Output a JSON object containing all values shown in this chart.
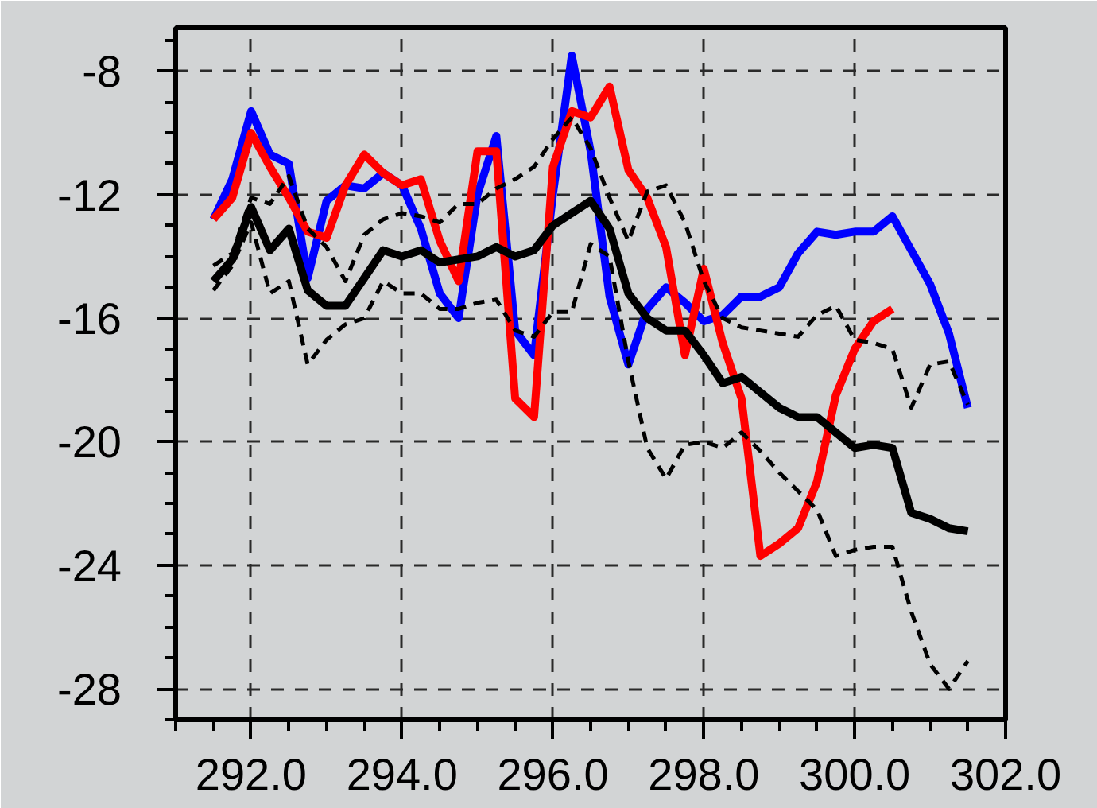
{
  "chart_data": {
    "type": "line",
    "x": [
      291.5,
      291.75,
      292,
      292.25,
      292.5,
      292.75,
      293,
      293.25,
      293.5,
      293.75,
      294,
      294.25,
      294.5,
      294.75,
      295,
      295.25,
      295.5,
      295.75,
      296,
      296.25,
      296.5,
      296.75,
      297,
      297.25,
      297.5,
      297.75,
      298,
      298.25,
      298.5,
      298.75,
      299,
      299.25,
      299.5,
      299.75,
      300,
      300.25,
      300.5,
      300.75,
      301,
      301.25,
      301.5
    ],
    "series": [
      {
        "color": "#0000ff",
        "line_style": "solid",
        "values": [
          -12.8,
          -11.5,
          -9.3,
          -10.7,
          -11.0,
          -14.7,
          -12.2,
          -11.7,
          -11.8,
          -11.3,
          -11.7,
          -13.1,
          -15.2,
          -16.0,
          -12.0,
          -10.1,
          -16.4,
          -17.2,
          -12.0,
          -7.5,
          -10.6,
          -15.3,
          -17.5,
          -15.7,
          -15.0,
          -15.5,
          -16.1,
          -15.9,
          -15.3,
          -15.3,
          -15.0,
          -13.9,
          -13.2,
          -13.3,
          -13.2,
          -13.2,
          -12.7,
          -13.8,
          -14.9,
          -16.5,
          -18.9
        ]
      },
      {
        "color": "#ff0000",
        "line_style": "solid",
        "values": [
          -12.8,
          -12.1,
          -10.0,
          -11.1,
          -12.1,
          -13.2,
          -13.4,
          -11.7,
          -10.7,
          -11.3,
          -11.7,
          -11.5,
          -13.5,
          -14.8,
          -10.6,
          -10.6,
          -18.6,
          -19.2,
          -11.1,
          -9.3,
          -9.5,
          -8.5,
          -11.2,
          -12.1,
          -13.7,
          -17.2,
          -14.4,
          -16.8,
          -18.6,
          -23.7,
          -23.3,
          -22.8,
          -21.3,
          -18.5,
          -17.0,
          -16.1,
          -15.7,
          null,
          null,
          null,
          null
        ]
      },
      {
        "color": "#000000",
        "line_style": "dashed",
        "values": [
          -14.3,
          -13.9,
          -12.1,
          -12.3,
          -11.4,
          -13.1,
          -13.7,
          -14.8,
          -13.3,
          -12.8,
          -12.6,
          -12.7,
          -12.9,
          -12.3,
          -12.3,
          -11.8,
          -11.5,
          -11.1,
          -10.2,
          -9.5,
          -10.5,
          -12.1,
          -13.5,
          -11.9,
          -11.7,
          -12.9,
          -14.8,
          -16.0,
          -16.3,
          -16.4,
          -16.5,
          -16.6,
          -15.9,
          -15.6,
          -16.7,
          -16.8,
          -17.0,
          -18.9,
          -17.5,
          -17.4,
          -18.8
        ]
      },
      {
        "color": "#000000",
        "line_style": "dashed",
        "values": [
          -15.1,
          -14.3,
          -12.9,
          -15.2,
          -14.8,
          -17.5,
          -16.7,
          -16.2,
          -16.0,
          -14.8,
          -15.2,
          -15.2,
          -15.7,
          -15.7,
          -15.5,
          -15.4,
          -16.4,
          -16.6,
          -15.8,
          -15.8,
          -13.6,
          -14.0,
          -17.4,
          -20.2,
          -21.2,
          -20.1,
          -20.0,
          -20.2,
          -19.7,
          -20.3,
          -21.0,
          -21.6,
          -22.2,
          -23.7,
          -23.5,
          -23.4,
          -23.4,
          -25.5,
          -27.2,
          -28.0,
          -27.1
        ]
      },
      {
        "color": "#000000",
        "line_style": "solid",
        "values": [
          -14.8,
          -14.1,
          -12.4,
          -13.8,
          -13.1,
          -15.1,
          -15.6,
          -15.6,
          -14.7,
          -13.8,
          -14.0,
          -13.8,
          -14.2,
          -14.1,
          -14.0,
          -13.7,
          -14.0,
          -13.8,
          -13.0,
          -12.6,
          -12.2,
          -13.1,
          -15.2,
          -16.0,
          -16.4,
          -16.4,
          -17.2,
          -18.1,
          -17.9,
          -18.4,
          -18.9,
          -19.2,
          -19.2,
          -19.7,
          -20.2,
          -20.1,
          -20.2,
          -22.3,
          -22.5,
          -22.8,
          -22.9
        ]
      }
    ],
    "xlim": [
      291,
      302
    ],
    "xticks": [
      {
        "value": 291,
        "label": null
      },
      {
        "value": 291.5,
        "label": null
      },
      {
        "value": 292,
        "label": "292.0"
      },
      {
        "value": 292.5,
        "label": null
      },
      {
        "value": 293,
        "label": null
      },
      {
        "value": 293.5,
        "label": null
      },
      {
        "value": 294,
        "label": "294.0"
      },
      {
        "value": 294.5,
        "label": null
      },
      {
        "value": 295,
        "label": null
      },
      {
        "value": 295.5,
        "label": null
      },
      {
        "value": 296,
        "label": "296.0"
      },
      {
        "value": 296.5,
        "label": null
      },
      {
        "value": 297,
        "label": null
      },
      {
        "value": 297.5,
        "label": null
      },
      {
        "value": 298,
        "label": "298.0"
      },
      {
        "value": 298.5,
        "label": null
      },
      {
        "value": 299,
        "label": null
      },
      {
        "value": 299.5,
        "label": null
      },
      {
        "value": 300,
        "label": "300.0"
      },
      {
        "value": 300.5,
        "label": null
      },
      {
        "value": 301,
        "label": null
      },
      {
        "value": 301.5,
        "label": null
      },
      {
        "value": 302,
        "label": "302.0"
      }
    ],
    "ylim": [
      -29,
      -6.6
    ],
    "yticks": [
      {
        "value": -29,
        "label": null
      },
      -28,
      {
        "value": -27,
        "label": null
      },
      {
        "value": -26,
        "label": null
      },
      {
        "value": -25,
        "label": null
      },
      -24,
      {
        "value": -23,
        "label": null
      },
      {
        "value": -22,
        "label": null
      },
      {
        "value": -21,
        "label": null
      },
      -20,
      {
        "value": -19,
        "label": null
      },
      {
        "value": -18,
        "label": null
      },
      {
        "value": -17,
        "label": null
      },
      -16,
      {
        "value": -15,
        "label": null
      },
      {
        "value": -14,
        "label": null
      },
      {
        "value": -13,
        "label": null
      },
      -12,
      {
        "value": -11,
        "label": null
      },
      {
        "value": -10,
        "label": null
      },
      {
        "value": -9,
        "label": null
      },
      -8,
      {
        "value": -7,
        "label": null
      }
    ],
    "grid": true,
    "marker": "none"
  }
}
